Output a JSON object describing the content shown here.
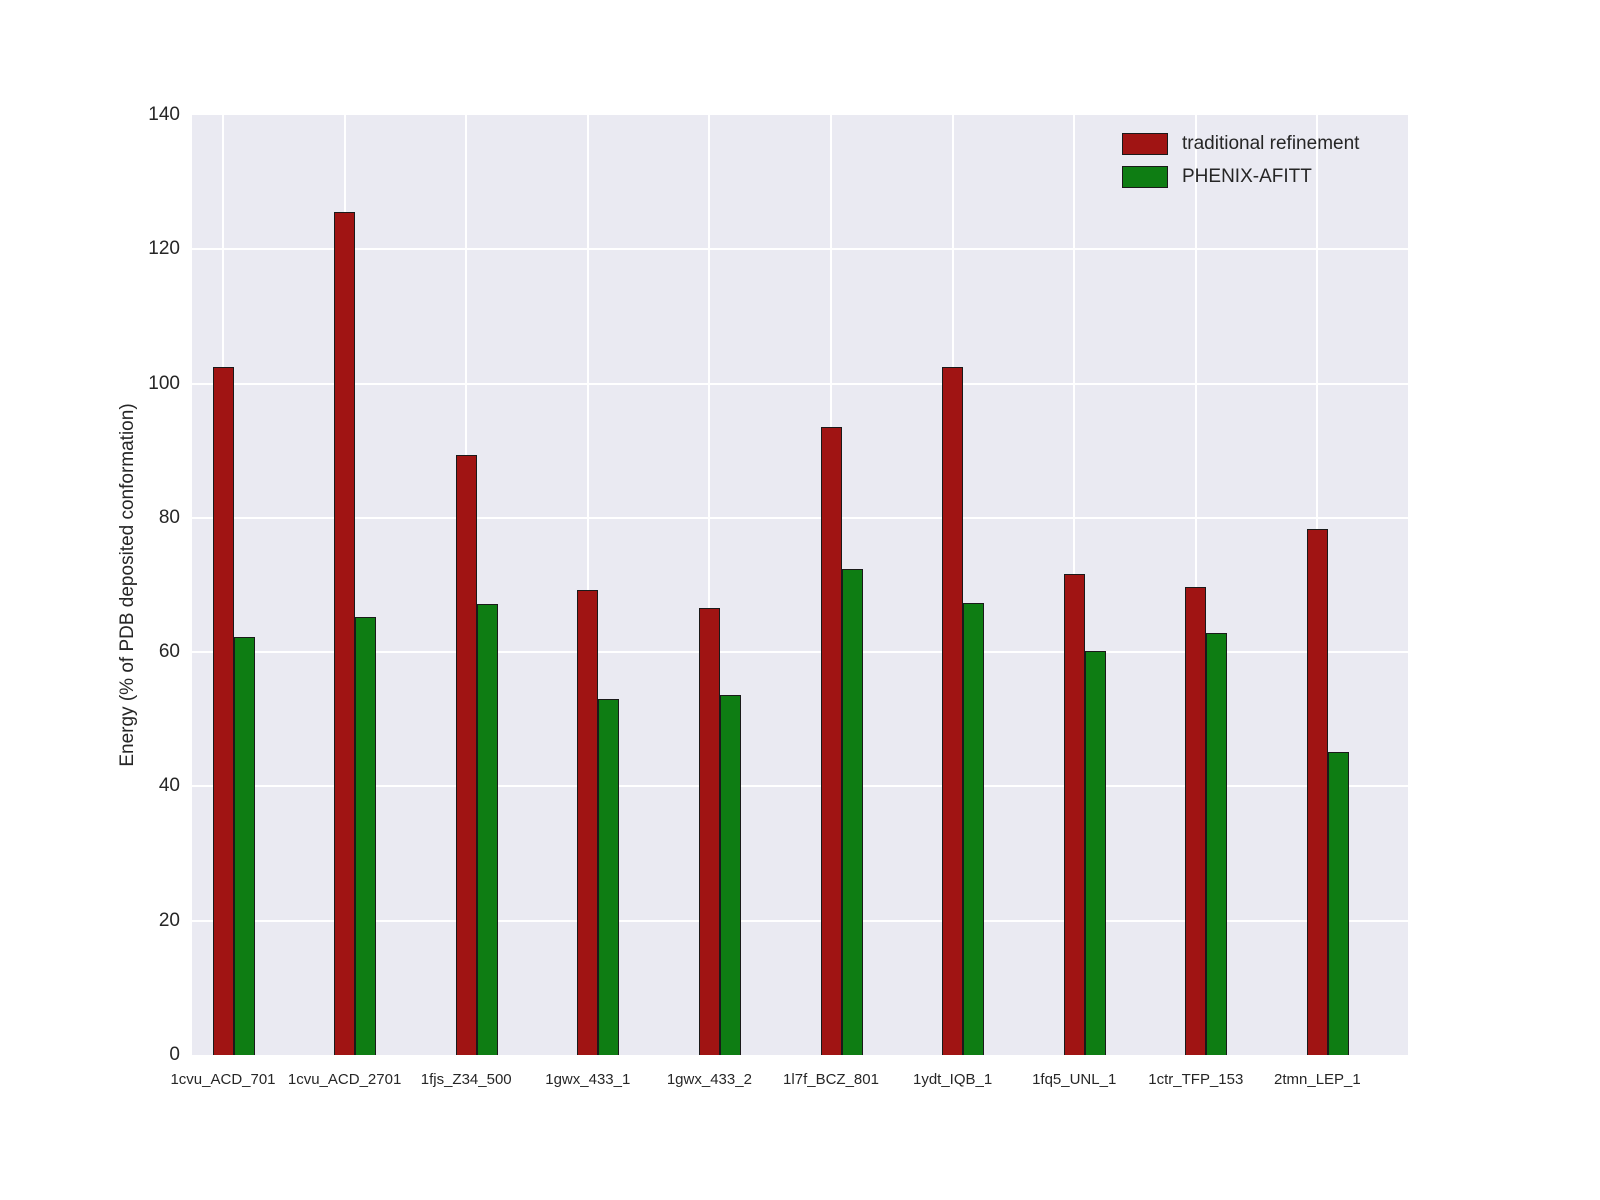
{
  "chart_data": {
    "type": "bar",
    "title": "",
    "xlabel": "",
    "ylabel": "Energy (% of PDB deposited conformation)",
    "ylim": [
      0,
      140
    ],
    "yticks": [
      0,
      20,
      40,
      60,
      80,
      100,
      120,
      140
    ],
    "grid": true,
    "legend_position": "upper right",
    "plot_bg_color": "#eaeaf2",
    "grid_color": "#ffffff",
    "categories": [
      "1cvu_ACD_701",
      "1cvu_ACD_2701",
      "1fjs_Z34_500",
      "1gwx_433_1",
      "1gwx_433_2",
      "1l7f_BCZ_801",
      "1ydt_IQB_1",
      "1fq5_UNL_1",
      "1ctr_TFP_153",
      "2tmn_LEP_1"
    ],
    "series": [
      {
        "name": "traditional refinement",
        "color": "#a01413",
        "values": [
          102.5,
          125.5,
          89.3,
          69.3,
          66.6,
          93.6,
          102.5,
          71.6,
          69.7,
          78.3
        ]
      },
      {
        "name": "PHENIX-AFITT",
        "color": "#0e7d13",
        "values": [
          62.2,
          65.2,
          67.1,
          53.0,
          53.6,
          72.4,
          67.3,
          60.2,
          62.9,
          45.2
        ]
      }
    ]
  }
}
